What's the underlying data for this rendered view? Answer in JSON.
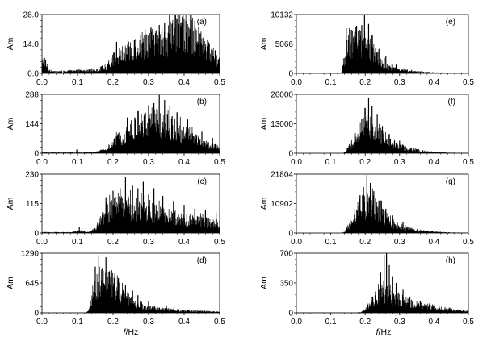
{
  "figure": {
    "x_axis_label_italic": "f",
    "x_axis_label_rest": "/Hz"
  },
  "chart_data": [
    {
      "id": "a",
      "type": "bar",
      "panel_label": "(a)",
      "ylabel": "Am",
      "ylim": [
        0,
        28.0
      ],
      "yticks": [
        "0.0",
        "14.0",
        "28.0"
      ],
      "xlim": [
        0,
        0.5
      ],
      "xticks": [
        "0.0",
        "0.1",
        "0.2",
        "0.3",
        "0.4",
        "0.5"
      ],
      "show_xtick_labels": true,
      "envelope": [
        [
          0,
          3
        ],
        [
          0.005,
          8
        ],
        [
          0.012,
          4
        ],
        [
          0.02,
          1.5
        ],
        [
          0.05,
          0.8
        ],
        [
          0.1,
          1.2
        ],
        [
          0.15,
          1.5
        ],
        [
          0.18,
          3
        ],
        [
          0.2,
          7
        ],
        [
          0.22,
          9
        ],
        [
          0.25,
          12
        ],
        [
          0.28,
          14
        ],
        [
          0.3,
          16
        ],
        [
          0.33,
          15
        ],
        [
          0.35,
          17
        ],
        [
          0.37,
          19
        ],
        [
          0.4,
          21
        ],
        [
          0.42,
          19
        ],
        [
          0.45,
          14
        ],
        [
          0.48,
          9
        ],
        [
          0.5,
          6
        ]
      ],
      "peaks": [
        [
          0.21,
          15
        ],
        [
          0.26,
          16
        ],
        [
          0.29,
          21
        ],
        [
          0.315,
          18
        ],
        [
          0.33,
          23
        ],
        [
          0.345,
          24
        ],
        [
          0.36,
          23
        ],
        [
          0.375,
          28
        ],
        [
          0.385,
          22
        ],
        [
          0.395,
          27
        ],
        [
          0.405,
          25
        ],
        [
          0.42,
          28
        ],
        [
          0.43,
          22
        ],
        [
          0.445,
          19
        ],
        [
          0.47,
          13
        ]
      ]
    },
    {
      "id": "b",
      "type": "bar",
      "panel_label": "(b)",
      "ylabel": "Am",
      "ylim": [
        0,
        288
      ],
      "yticks": [
        "0",
        "144",
        "288"
      ],
      "xlim": [
        0,
        0.5
      ],
      "xticks": [
        "0.0",
        "0.1",
        "0.2",
        "0.3",
        "0.4",
        "0.5"
      ],
      "show_xtick_labels": false,
      "envelope": [
        [
          0,
          3
        ],
        [
          0.1,
          3
        ],
        [
          0.15,
          5
        ],
        [
          0.18,
          18
        ],
        [
          0.2,
          45
        ],
        [
          0.22,
          80
        ],
        [
          0.25,
          115
        ],
        [
          0.28,
          140
        ],
        [
          0.3,
          150
        ],
        [
          0.32,
          155
        ],
        [
          0.35,
          140
        ],
        [
          0.38,
          120
        ],
        [
          0.4,
          95
        ],
        [
          0.43,
          70
        ],
        [
          0.46,
          45
        ],
        [
          0.5,
          25
        ]
      ],
      "peaks": [
        [
          0.098,
          18
        ],
        [
          0.24,
          175
        ],
        [
          0.27,
          205
        ],
        [
          0.3,
          235
        ],
        [
          0.315,
          245
        ],
        [
          0.33,
          285
        ],
        [
          0.345,
          260
        ],
        [
          0.36,
          235
        ],
        [
          0.38,
          200
        ],
        [
          0.41,
          165
        ],
        [
          0.45,
          105
        ],
        [
          0.48,
          75
        ]
      ]
    },
    {
      "id": "c",
      "type": "bar",
      "panel_label": "(c)",
      "ylabel": "Am",
      "ylim": [
        0,
        230
      ],
      "yticks": [
        "0",
        "115",
        "230"
      ],
      "xlim": [
        0,
        0.5
      ],
      "xticks": [
        "0.0",
        "0.1",
        "0.2",
        "0.3",
        "0.4",
        "0.5"
      ],
      "show_xtick_labels": false,
      "envelope": [
        [
          0,
          3
        ],
        [
          0.08,
          3
        ],
        [
          0.1,
          8
        ],
        [
          0.13,
          5
        ],
        [
          0.15,
          15
        ],
        [
          0.17,
          60
        ],
        [
          0.19,
          90
        ],
        [
          0.22,
          105
        ],
        [
          0.25,
          100
        ],
        [
          0.28,
          95
        ],
        [
          0.3,
          85
        ],
        [
          0.33,
          75
        ],
        [
          0.36,
          65
        ],
        [
          0.4,
          55
        ],
        [
          0.43,
          50
        ],
        [
          0.46,
          45
        ],
        [
          0.5,
          35
        ]
      ],
      "peaks": [
        [
          0.105,
          22
        ],
        [
          0.18,
          140
        ],
        [
          0.2,
          165
        ],
        [
          0.22,
          175
        ],
        [
          0.235,
          220
        ],
        [
          0.255,
          185
        ],
        [
          0.27,
          175
        ],
        [
          0.285,
          200
        ],
        [
          0.3,
          150
        ],
        [
          0.315,
          175
        ],
        [
          0.34,
          145
        ],
        [
          0.37,
          125
        ],
        [
          0.4,
          110
        ],
        [
          0.43,
          95
        ],
        [
          0.46,
          90
        ],
        [
          0.49,
          80
        ]
      ]
    },
    {
      "id": "d",
      "type": "bar",
      "panel_label": "(d)",
      "ylabel": "Am",
      "ylim": [
        0,
        1290
      ],
      "yticks": [
        "0",
        "645",
        "1290"
      ],
      "xlim": [
        0,
        0.5
      ],
      "xticks": [
        "0.0",
        "0.1",
        "0.2",
        "0.3",
        "0.4",
        "0.5"
      ],
      "show_xtick_labels": true,
      "envelope": [
        [
          0,
          3
        ],
        [
          0.12,
          3
        ],
        [
          0.13,
          30
        ],
        [
          0.14,
          300
        ],
        [
          0.15,
          600
        ],
        [
          0.17,
          700
        ],
        [
          0.19,
          650
        ],
        [
          0.21,
          520
        ],
        [
          0.23,
          380
        ],
        [
          0.25,
          250
        ],
        [
          0.27,
          170
        ],
        [
          0.3,
          110
        ],
        [
          0.33,
          85
        ],
        [
          0.36,
          65
        ],
        [
          0.4,
          50
        ],
        [
          0.45,
          35
        ],
        [
          0.5,
          20
        ]
      ],
      "peaks": [
        [
          0.15,
          1000
        ],
        [
          0.16,
          1250
        ],
        [
          0.17,
          950
        ],
        [
          0.18,
          1200
        ],
        [
          0.19,
          900
        ],
        [
          0.205,
          850
        ],
        [
          0.215,
          750
        ],
        [
          0.235,
          600
        ],
        [
          0.255,
          480
        ],
        [
          0.27,
          380
        ],
        [
          0.3,
          260
        ],
        [
          0.35,
          160
        ]
      ]
    },
    {
      "id": "e",
      "type": "bar",
      "panel_label": "(e)",
      "ylabel": "Am",
      "ylim": [
        0,
        10132
      ],
      "yticks": [
        "0",
        "5066",
        "10132"
      ],
      "xlim": [
        0,
        0.5
      ],
      "xticks": [
        "0.0",
        "0.1",
        "0.2",
        "0.3",
        "0.4",
        "0.5"
      ],
      "show_xtick_labels": false,
      "envelope": [
        [
          0,
          3
        ],
        [
          0.12,
          3
        ],
        [
          0.13,
          100
        ],
        [
          0.14,
          2500
        ],
        [
          0.15,
          5000
        ],
        [
          0.17,
          5500
        ],
        [
          0.19,
          5800
        ],
        [
          0.21,
          5000
        ],
        [
          0.23,
          3200
        ],
        [
          0.25,
          1800
        ],
        [
          0.27,
          1100
        ],
        [
          0.3,
          600
        ],
        [
          0.33,
          380
        ],
        [
          0.36,
          250
        ],
        [
          0.4,
          150
        ],
        [
          0.45,
          60
        ],
        [
          0.5,
          20
        ]
      ],
      "peaks": [
        [
          0.145,
          7800
        ],
        [
          0.16,
          7500
        ],
        [
          0.175,
          8200
        ],
        [
          0.19,
          8300
        ],
        [
          0.198,
          10100
        ],
        [
          0.21,
          8500
        ],
        [
          0.22,
          6500
        ],
        [
          0.24,
          4200
        ],
        [
          0.26,
          3000
        ],
        [
          0.29,
          1500
        ]
      ]
    },
    {
      "id": "f",
      "type": "bar",
      "panel_label": "(f)",
      "ylabel": "Am",
      "ylim": [
        0,
        26000
      ],
      "yticks": [
        "0",
        "13000",
        "26000"
      ],
      "xlim": [
        0,
        0.5
      ],
      "xticks": [
        "0.0",
        "0.1",
        "0.2",
        "0.3",
        "0.4",
        "0.5"
      ],
      "show_xtick_labels": false,
      "envelope": [
        [
          0,
          3
        ],
        [
          0.13,
          3
        ],
        [
          0.14,
          300
        ],
        [
          0.16,
          4000
        ],
        [
          0.18,
          9000
        ],
        [
          0.2,
          12000
        ],
        [
          0.22,
          11500
        ],
        [
          0.24,
          9000
        ],
        [
          0.26,
          6500
        ],
        [
          0.28,
          4500
        ],
        [
          0.3,
          3000
        ],
        [
          0.33,
          1800
        ],
        [
          0.36,
          1000
        ],
        [
          0.4,
          500
        ],
        [
          0.45,
          200
        ],
        [
          0.5,
          80
        ]
      ],
      "peaks": [
        [
          0.17,
          8000
        ],
        [
          0.19,
          15000
        ],
        [
          0.2,
          20000
        ],
        [
          0.21,
          24500
        ],
        [
          0.22,
          21000
        ],
        [
          0.235,
          17000
        ],
        [
          0.25,
          12000
        ],
        [
          0.27,
          8500
        ],
        [
          0.3,
          5500
        ]
      ]
    },
    {
      "id": "g",
      "type": "bar",
      "panel_label": "(g)",
      "ylabel": "Am",
      "ylim": [
        0,
        21804
      ],
      "yticks": [
        "0",
        "10902",
        "21804"
      ],
      "xlim": [
        0,
        0.5
      ],
      "xticks": [
        "0.0",
        "0.1",
        "0.2",
        "0.3",
        "0.4",
        "0.5"
      ],
      "show_xtick_labels": false,
      "envelope": [
        [
          0,
          3
        ],
        [
          0.13,
          3
        ],
        [
          0.14,
          400
        ],
        [
          0.16,
          4000
        ],
        [
          0.18,
          8500
        ],
        [
          0.2,
          10500
        ],
        [
          0.22,
          10000
        ],
        [
          0.24,
          8000
        ],
        [
          0.26,
          5500
        ],
        [
          0.28,
          3800
        ],
        [
          0.3,
          2600
        ],
        [
          0.33,
          1500
        ],
        [
          0.36,
          900
        ],
        [
          0.4,
          450
        ],
        [
          0.45,
          180
        ],
        [
          0.5,
          60
        ]
      ],
      "peaks": [
        [
          0.17,
          9000
        ],
        [
          0.185,
          14000
        ],
        [
          0.195,
          17000
        ],
        [
          0.205,
          21500
        ],
        [
          0.215,
          18500
        ],
        [
          0.225,
          15500
        ],
        [
          0.24,
          12000
        ],
        [
          0.26,
          9000
        ],
        [
          0.28,
          6500
        ],
        [
          0.31,
          4000
        ]
      ]
    },
    {
      "id": "h",
      "type": "bar",
      "panel_label": "(h)",
      "ylabel": "Am",
      "ylim": [
        0,
        700
      ],
      "yticks": [
        "0",
        "350",
        "700"
      ],
      "xlim": [
        0,
        0.5
      ],
      "xticks": [
        "0.0",
        "0.1",
        "0.2",
        "0.3",
        "0.4",
        "0.5"
      ],
      "show_xtick_labels": true,
      "envelope": [
        [
          0,
          3
        ],
        [
          0.18,
          3
        ],
        [
          0.19,
          10
        ],
        [
          0.2,
          40
        ],
        [
          0.21,
          90
        ],
        [
          0.22,
          140
        ],
        [
          0.24,
          210
        ],
        [
          0.26,
          240
        ],
        [
          0.28,
          210
        ],
        [
          0.3,
          160
        ],
        [
          0.32,
          130
        ],
        [
          0.35,
          100
        ],
        [
          0.38,
          75
        ],
        [
          0.42,
          50
        ],
        [
          0.46,
          30
        ],
        [
          0.5,
          20
        ]
      ],
      "peaks": [
        [
          0.23,
          250
        ],
        [
          0.245,
          470
        ],
        [
          0.255,
          680
        ],
        [
          0.262,
          700
        ],
        [
          0.27,
          560
        ],
        [
          0.28,
          430
        ],
        [
          0.29,
          350
        ],
        [
          0.31,
          270
        ],
        [
          0.33,
          190
        ],
        [
          0.36,
          140
        ],
        [
          0.4,
          95
        ]
      ]
    }
  ]
}
